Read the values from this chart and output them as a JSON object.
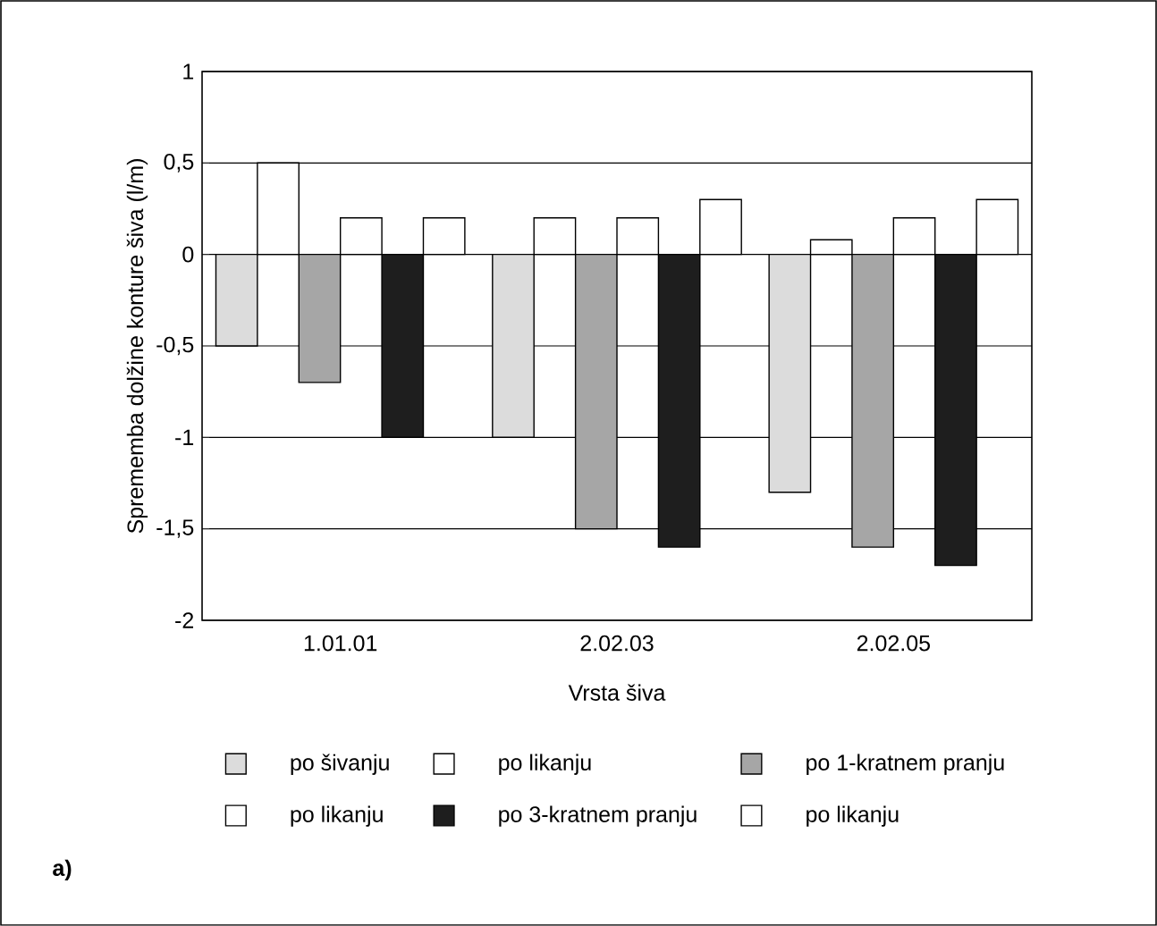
{
  "chart_data": {
    "type": "bar",
    "xlabel": "Vrsta šiva",
    "ylabel": "Sprememba dolžine konture šiva (l/m)",
    "categories": [
      "1.01.01",
      "2.02.03",
      "2.02.05"
    ],
    "series": [
      {
        "name": "po šivanju",
        "color": "#dcdcdc",
        "values": [
          -0.5,
          -1.0,
          -1.3
        ]
      },
      {
        "name": "po likanju",
        "color": "#ffffff",
        "values": [
          0.5,
          0.2,
          0.08
        ]
      },
      {
        "name": "po 1-kratnem pranju",
        "color": "#a6a6a6",
        "values": [
          -0.7,
          -1.5,
          -1.6
        ]
      },
      {
        "name": "po likanju",
        "color": "#ffffff",
        "values": [
          0.2,
          0.2,
          0.2
        ]
      },
      {
        "name": "po 3-kratnem pranju",
        "color": "#1e1e1e",
        "values": [
          -1.0,
          -1.6,
          -1.7
        ]
      },
      {
        "name": "po likanju",
        "color": "#ffffff",
        "values": [
          0.2,
          0.3,
          0.3
        ]
      }
    ],
    "ylim": [
      -2,
      1
    ],
    "yticks": [
      -2,
      {
        "value": -1.5,
        "label": "-1,5"
      },
      -1,
      {
        "value": -0.5,
        "label": "-0,5"
      },
      0,
      {
        "value": 0.5,
        "label": "0,5"
      },
      1
    ],
    "grid": "y",
    "legend": "bottom",
    "annotations": [
      "a)"
    ]
  }
}
